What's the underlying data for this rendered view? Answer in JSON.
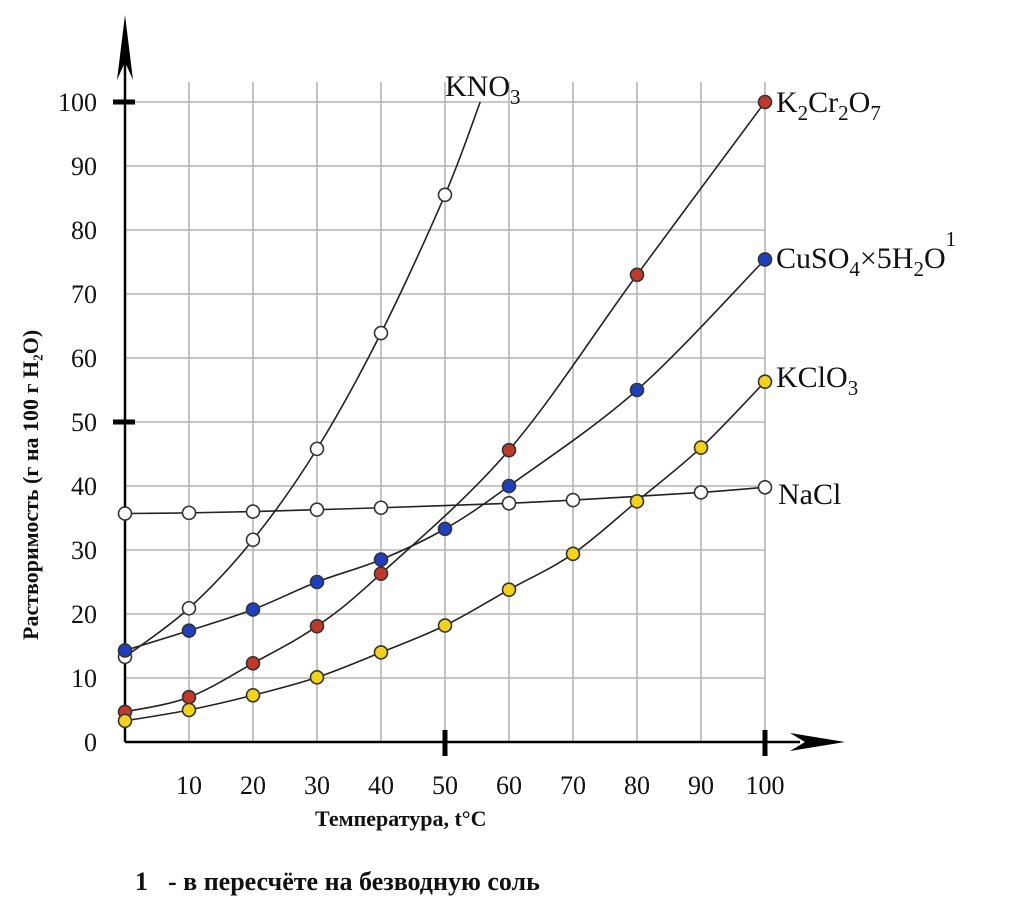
{
  "chart_data": {
    "type": "line",
    "title": "",
    "xlabel": "Температура, t°C",
    "ylabel": "Растворимость (г на 100 г H₂O)",
    "xlim": [
      0,
      100
    ],
    "ylim": [
      0,
      100
    ],
    "x_ticks": [
      "10",
      "20",
      "30",
      "40",
      "50",
      "60",
      "70",
      "80",
      "90",
      "100"
    ],
    "y_ticks": [
      "0",
      "10",
      "20",
      "30",
      "40",
      "50",
      "60",
      "70",
      "80",
      "90",
      "100"
    ],
    "grid": true,
    "series": [
      {
        "name": "KNO₃",
        "label_main": "KNO",
        "label_sub": "3",
        "label_tail": "",
        "marker_color": "#ffffff",
        "x": [
          0,
          10,
          20,
          30,
          40,
          50
        ],
        "y": [
          13.3,
          20.9,
          31.6,
          45.8,
          63.9,
          85.5
        ],
        "curve_extends_to": [
          55.5,
          100
        ]
      },
      {
        "name": "K₂Cr₂O₇",
        "label_main": "K",
        "label_parts": [
          "K",
          "2",
          "Cr",
          "2",
          "O",
          "7"
        ],
        "marker_color": "#c0392b",
        "x": [
          0,
          10,
          20,
          30,
          40,
          60,
          80,
          100
        ],
        "y": [
          4.7,
          7.0,
          12.3,
          18.1,
          26.3,
          45.6,
          73.0,
          100.0
        ]
      },
      {
        "name": "CuSO₄×5H₂O¹",
        "label_parts": [
          "CuSO",
          "4",
          "×",
          "5H",
          "2",
          "O",
          "1"
        ],
        "marker_color": "#1f3fbf",
        "x": [
          0,
          10,
          20,
          30,
          40,
          50,
          60,
          80,
          100
        ],
        "y": [
          14.3,
          17.4,
          20.7,
          25.0,
          28.5,
          33.3,
          40.0,
          55.0,
          75.4
        ]
      },
      {
        "name": "KClO₃",
        "label_parts": [
          "KClO",
          "3"
        ],
        "marker_color": "#f2d21b",
        "x": [
          0,
          10,
          20,
          30,
          40,
          50,
          60,
          70,
          80,
          90,
          100
        ],
        "y": [
          3.3,
          5.0,
          7.3,
          10.1,
          14.0,
          18.2,
          23.8,
          29.4,
          37.6,
          46.0,
          56.3
        ]
      },
      {
        "name": "NaCl",
        "label_parts": [
          "NaCl"
        ],
        "marker_color": "#ffffff",
        "x": [
          0,
          10,
          20,
          30,
          40,
          60,
          70,
          90,
          100
        ],
        "y": [
          35.7,
          35.8,
          36.0,
          36.3,
          36.6,
          37.3,
          37.8,
          39.0,
          39.8
        ]
      }
    ],
    "footnote": {
      "marker": "1",
      "text": "- в пересчёте на безводную соль"
    }
  }
}
